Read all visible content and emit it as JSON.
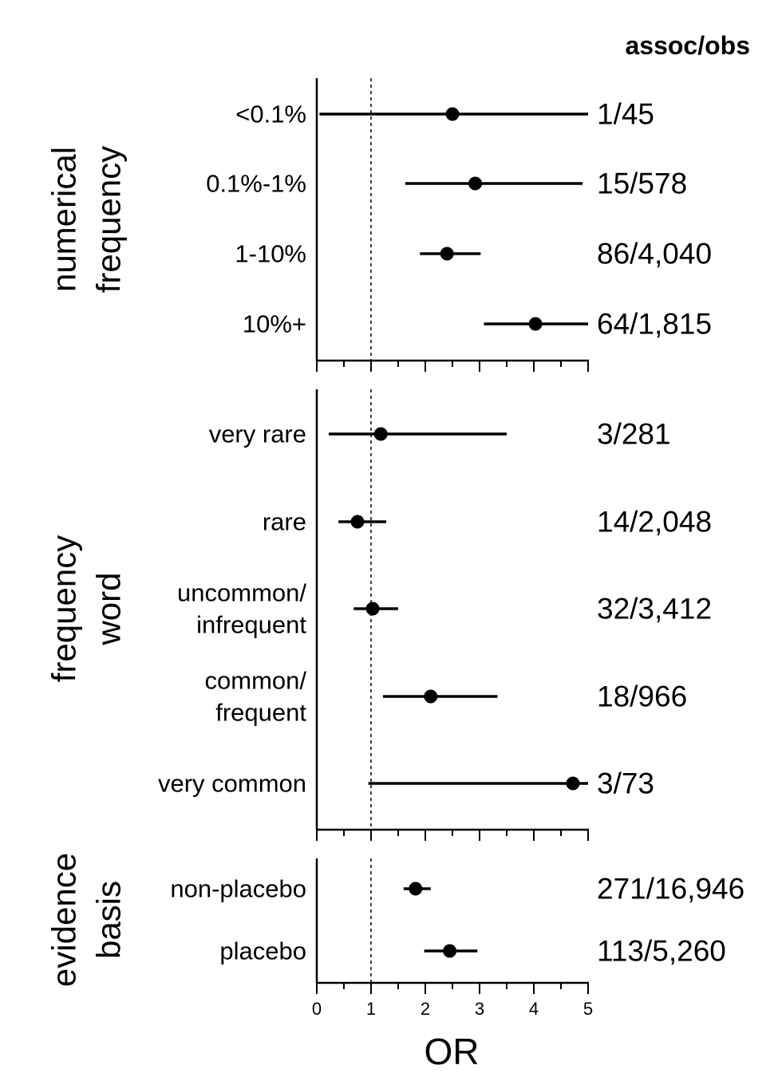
{
  "chart_data": {
    "type": "forest",
    "header": "assoc/obs",
    "xlabel": "OR",
    "xlim": [
      0,
      5
    ],
    "x_ticks": [
      "0",
      "1",
      "2",
      "3",
      "4",
      "5"
    ],
    "reference_line": 1,
    "panels": [
      {
        "title_lines": [
          "numerical",
          "frequency"
        ],
        "rows": [
          {
            "label_lines": [
              "<0.1%"
            ],
            "or": 2.5,
            "ci": [
              0.05,
              5.0
            ],
            "assoc_obs": "1/45"
          },
          {
            "label_lines": [
              "0.1%-1%"
            ],
            "or": 2.92,
            "ci": [
              1.63,
              4.9
            ],
            "assoc_obs": "15/578"
          },
          {
            "label_lines": [
              "1-10%"
            ],
            "or": 2.4,
            "ci": [
              1.9,
              3.02
            ],
            "assoc_obs": "86/4,040"
          },
          {
            "label_lines": [
              "10%+"
            ],
            "or": 4.03,
            "ci": [
              3.08,
              5.0
            ],
            "assoc_obs": "64/1,815"
          }
        ]
      },
      {
        "title_lines": [
          "frequency",
          "word"
        ],
        "rows": [
          {
            "label_lines": [
              "very rare"
            ],
            "or": 1.18,
            "ci": [
              0.22,
              3.5
            ],
            "assoc_obs": "3/281"
          },
          {
            "label_lines": [
              "rare"
            ],
            "or": 0.75,
            "ci": [
              0.4,
              1.28
            ],
            "assoc_obs": "14/2,048"
          },
          {
            "label_lines": [
              "uncommon/",
              "infrequent"
            ],
            "or": 1.03,
            "ci": [
              0.68,
              1.5
            ],
            "assoc_obs": "32/3,412"
          },
          {
            "label_lines": [
              "common/",
              "frequent"
            ],
            "or": 2.1,
            "ci": [
              1.22,
              3.33
            ],
            "assoc_obs": "18/966"
          },
          {
            "label_lines": [
              "very common"
            ],
            "or": 4.72,
            "ci": [
              0.95,
              5.0
            ],
            "assoc_obs": "3/73"
          }
        ]
      },
      {
        "title_lines": [
          "evidence",
          "basis"
        ],
        "rows": [
          {
            "label_lines": [
              "non-placebo"
            ],
            "or": 1.82,
            "ci": [
              1.6,
              2.1
            ],
            "assoc_obs": "271/16,946"
          },
          {
            "label_lines": [
              "placebo"
            ],
            "or": 2.45,
            "ci": [
              1.98,
              2.96
            ],
            "assoc_obs": "113/5,260"
          }
        ]
      }
    ]
  }
}
